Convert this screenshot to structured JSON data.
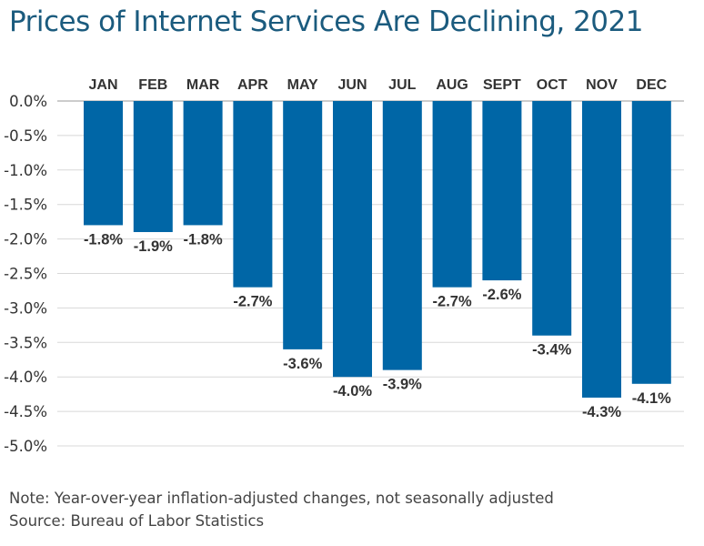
{
  "chart_data": {
    "type": "bar",
    "title": "Prices of Internet Services Are Declining, 2021",
    "categories": [
      "JAN",
      "FEB",
      "MAR",
      "APR",
      "MAY",
      "JUN",
      "JUL",
      "AUG",
      "SEPT",
      "OCT",
      "NOV",
      "DEC"
    ],
    "values": [
      -1.8,
      -1.9,
      -1.8,
      -2.7,
      -3.6,
      -4.0,
      -3.9,
      -2.7,
      -2.6,
      -3.4,
      -4.3,
      -4.1
    ],
    "data_labels": [
      "-1.8%",
      "-1.9%",
      "-1.8%",
      "-2.7%",
      "-3.6%",
      "-4.0%",
      "-3.9%",
      "-2.7%",
      "-2.6%",
      "-3.4%",
      "-4.3%",
      "-4.1%"
    ],
    "yticks": [
      "0.0%",
      "-0.5%",
      "-1.0%",
      "-1.5%",
      "-2.0%",
      "-2.5%",
      "-3.0%",
      "-3.5%",
      "-4.0%",
      "-4.5%",
      "-5.0%"
    ],
    "ylim": [
      -5.0,
      0.0
    ],
    "grid": true,
    "bar_color": "#0066a6"
  },
  "notes": {
    "note": "Note: Year-over-year inflation-adjusted changes, not seasonally adjusted",
    "source": "Source: Bureau of Labor Statistics"
  }
}
